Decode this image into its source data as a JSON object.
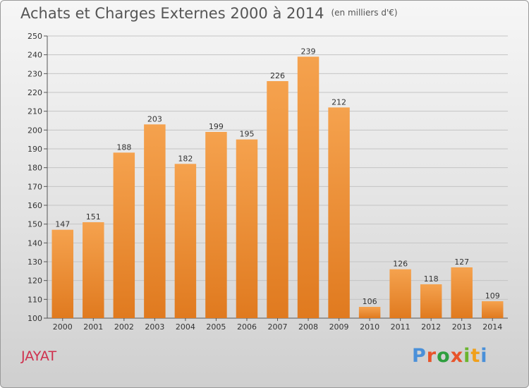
{
  "header": {
    "title": "Achats et Charges Externes 2000 à 2014",
    "subtitle": "(en milliers d'€)"
  },
  "footer": {
    "city": "JAYAT",
    "brand_letters": [
      "P",
      "r",
      "o",
      "x",
      "i",
      "t",
      "i"
    ]
  },
  "colors": {
    "bar_top": "#f5a24e",
    "bar_bottom": "#e07a1f",
    "brand": [
      "#4a90d9",
      "#e8542a",
      "#2e9e3e",
      "#e8542a",
      "#6bb52e",
      "#f0a01c",
      "#4a90d9"
    ]
  },
  "chart_data": {
    "type": "bar",
    "title": "Achats et Charges Externes 2000 à 2014",
    "subtitle": "(en milliers d'€)",
    "categories": [
      "2000",
      "2001",
      "2002",
      "2003",
      "2004",
      "2005",
      "2006",
      "2007",
      "2008",
      "2009",
      "2010",
      "2011",
      "2012",
      "2013",
      "2014"
    ],
    "values": [
      147,
      151,
      188,
      203,
      182,
      199,
      195,
      226,
      239,
      212,
      106,
      126,
      118,
      127,
      109
    ],
    "ylim": [
      100,
      250
    ],
    "yticks": [
      100,
      110,
      120,
      130,
      140,
      150,
      160,
      170,
      180,
      190,
      200,
      210,
      220,
      230,
      240,
      250
    ],
    "grid": true
  }
}
